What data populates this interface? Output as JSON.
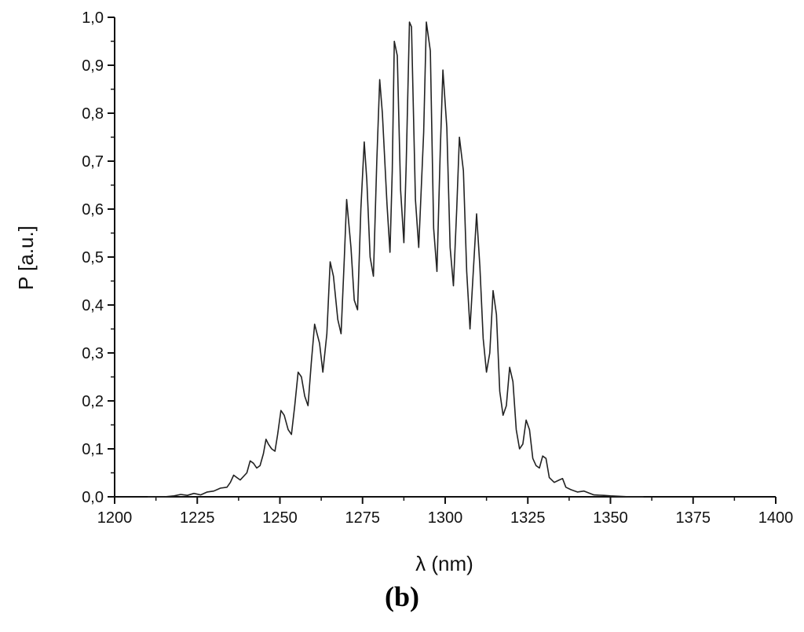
{
  "caption": "(b)",
  "chart_data": {
    "type": "line",
    "xlabel": "λ (nm)",
    "ylabel": "P [a.u.]",
    "xlim": [
      1200,
      1400
    ],
    "ylim": [
      0.0,
      1.0
    ],
    "x_ticks": [
      1200,
      1225,
      1250,
      1275,
      1300,
      1325,
      1350,
      1375,
      1400
    ],
    "x_tick_labels": [
      "1200",
      "1225",
      "1250",
      "1275",
      "1300",
      "1325",
      "1350",
      "1375",
      "1400"
    ],
    "y_ticks": [
      0.0,
      0.1,
      0.2,
      0.3,
      0.4,
      0.5,
      0.6,
      0.7,
      0.8,
      0.9,
      1.0
    ],
    "y_tick_labels": [
      "0,0",
      "0,1",
      "0,2",
      "0,3",
      "0,4",
      "0,5",
      "0,6",
      "0,7",
      "0,8",
      "0,9",
      "1,0"
    ],
    "grid": false,
    "line_color": "#222222",
    "series": [
      {
        "x": [
          1210,
          1215,
          1218,
          1220,
          1222,
          1224,
          1226,
          1228,
          1230,
          1232,
          1234,
          1235,
          1236,
          1237,
          1238,
          1240,
          1241,
          1242,
          1243,
          1244,
          1245,
          1245.8,
          1246.5,
          1247.5,
          1248.5,
          1249.3,
          1250.3,
          1251.3,
          1252.5,
          1253.5,
          1254.5,
          1255.5,
          1256.5,
          1257.5,
          1258.5,
          1259.5,
          1260.5,
          1262,
          1263,
          1264.2,
          1265.2,
          1266.2,
          1267.5,
          1268.5,
          1269.5,
          1270.2,
          1271.5,
          1272.5,
          1273.5,
          1274.5,
          1275.5,
          1276.3,
          1277.3,
          1278.3,
          1279.3,
          1280.2,
          1281,
          1282.4,
          1283.3,
          1284,
          1284.6,
          1285.5,
          1286.5,
          1287.5,
          1288.2,
          1289.2,
          1289.8,
          1291,
          1292,
          1293.5,
          1294.3,
          1295.5,
          1296.5,
          1297.5,
          1298.5,
          1299.3,
          1300.5,
          1301.5,
          1302.5,
          1303.5,
          1304.3,
          1305.5,
          1306.5,
          1307.5,
          1308.5,
          1309.5,
          1310.5,
          1311.5,
          1312.5,
          1313.5,
          1314.5,
          1315.5,
          1316.5,
          1317.5,
          1318.5,
          1319.5,
          1320.5,
          1321.5,
          1322.5,
          1323.5,
          1324.5,
          1325.5,
          1326.5,
          1327.5,
          1328.5,
          1329.5,
          1330.5,
          1331.5,
          1333,
          1334.5,
          1335.5,
          1336.5,
          1338,
          1340,
          1342,
          1345,
          1348,
          1350,
          1353,
          1356,
          1360
        ],
        "y": [
          0.0,
          0.0,
          0.002,
          0.005,
          0.003,
          0.007,
          0.004,
          0.01,
          0.012,
          0.018,
          0.02,
          0.03,
          0.045,
          0.04,
          0.035,
          0.05,
          0.075,
          0.07,
          0.06,
          0.065,
          0.09,
          0.12,
          0.11,
          0.1,
          0.095,
          0.13,
          0.18,
          0.17,
          0.14,
          0.13,
          0.19,
          0.26,
          0.25,
          0.21,
          0.19,
          0.28,
          0.36,
          0.32,
          0.26,
          0.34,
          0.49,
          0.46,
          0.37,
          0.34,
          0.5,
          0.62,
          0.52,
          0.41,
          0.39,
          0.6,
          0.74,
          0.66,
          0.5,
          0.46,
          0.7,
          0.87,
          0.8,
          0.61,
          0.51,
          0.68,
          0.95,
          0.92,
          0.64,
          0.53,
          0.69,
          0.99,
          0.98,
          0.62,
          0.52,
          0.76,
          0.99,
          0.93,
          0.56,
          0.47,
          0.72,
          0.89,
          0.77,
          0.52,
          0.44,
          0.6,
          0.75,
          0.68,
          0.47,
          0.35,
          0.47,
          0.59,
          0.48,
          0.33,
          0.26,
          0.3,
          0.43,
          0.38,
          0.22,
          0.17,
          0.19,
          0.27,
          0.24,
          0.14,
          0.1,
          0.11,
          0.16,
          0.14,
          0.08,
          0.065,
          0.06,
          0.085,
          0.08,
          0.04,
          0.03,
          0.035,
          0.038,
          0.02,
          0.015,
          0.01,
          0.012,
          0.004,
          0.003,
          0.002,
          0.001,
          0.0,
          0.0
        ]
      }
    ]
  }
}
